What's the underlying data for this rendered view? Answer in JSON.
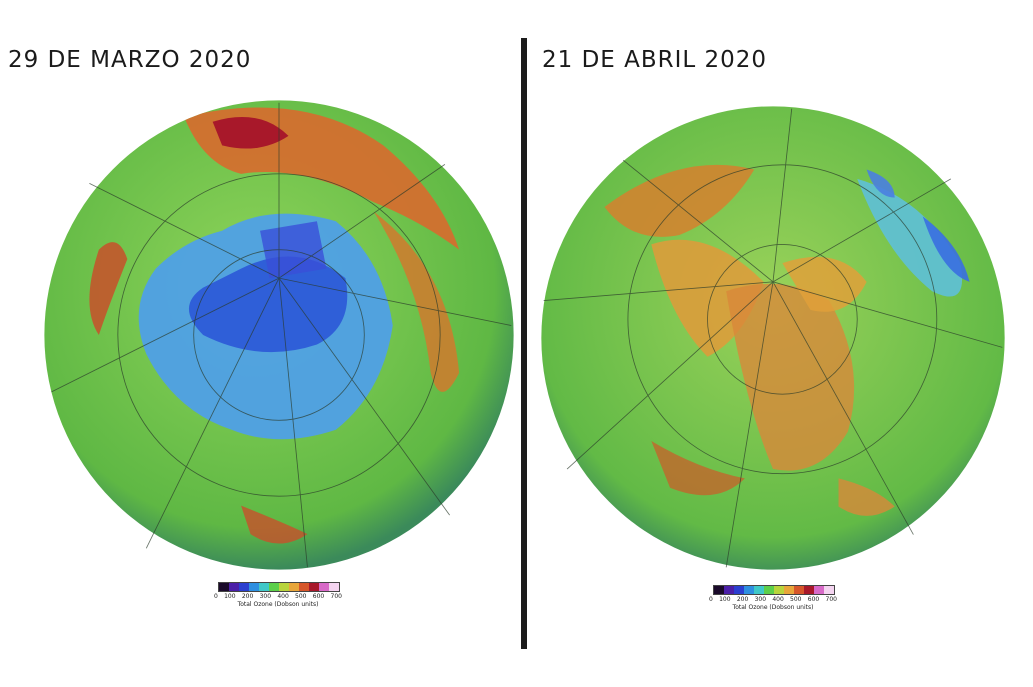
{
  "panels": [
    {
      "date": "29 DE MARZO 2020",
      "colorbar": {
        "ticks": [
          "0",
          "100",
          "200",
          "300",
          "400",
          "500",
          "600",
          "700"
        ],
        "label": "Total Ozone (Dobson units)"
      }
    },
    {
      "date": "21 DE ABRIL 2020",
      "colorbar": {
        "ticks": [
          "0",
          "100",
          "200",
          "300",
          "400",
          "500",
          "600",
          "700"
        ],
        "label": "Total Ozone (Dobson units)"
      }
    }
  ],
  "colorscale": [
    "#1a0a2a",
    "#4b1fa8",
    "#2b3fd0",
    "#2e8fe0",
    "#3fc8c8",
    "#5ccf4a",
    "#b8d43c",
    "#e8a63a",
    "#d6562a",
    "#a8182a",
    "#d86ac8",
    "#f4d4f0"
  ],
  "colors": {
    "ocean_green": "#6cc24a",
    "low_ozone_blue": "#3a6fe0",
    "high_ozone_red": "#c8402a",
    "divider": "#1c1c1c"
  }
}
